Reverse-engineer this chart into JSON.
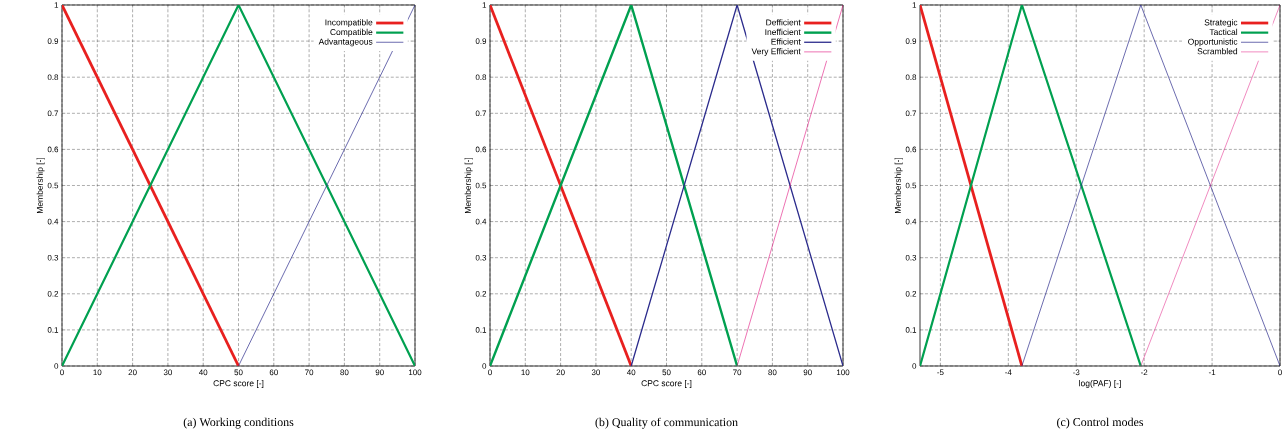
{
  "chart_data": [
    {
      "type": "line",
      "title": "(a)  Working conditions",
      "xlabel": "CPC score [-]",
      "ylabel": "Membership [-]",
      "xlim": [
        0,
        100
      ],
      "ylim": [
        0,
        1
      ],
      "xticks": [
        0,
        10,
        20,
        30,
        40,
        50,
        60,
        70,
        80,
        90,
        100
      ],
      "yticks": [
        0,
        0.1,
        0.2,
        0.3,
        0.4,
        0.5,
        0.6,
        0.7,
        0.8,
        0.9,
        1
      ],
      "grid": true,
      "legend": "top right",
      "series": [
        {
          "name": "Incompatible",
          "color": "#e8201f",
          "x": [
            0,
            50
          ],
          "values": [
            1,
            0
          ]
        },
        {
          "name": "Compatible",
          "color": "#00a050",
          "x": [
            0,
            50,
            100
          ],
          "values": [
            0,
            1,
            0
          ]
        },
        {
          "name": "Advantageous",
          "color": "#2b2b8c",
          "x": [
            50,
            100
          ],
          "values": [
            0,
            1
          ]
        }
      ]
    },
    {
      "type": "line",
      "title": "(b)  Quality of communication",
      "xlabel": "CPC score [-]",
      "ylabel": "Membership [-]",
      "xlim": [
        0,
        100
      ],
      "ylim": [
        0,
        1
      ],
      "xticks": [
        0,
        10,
        20,
        30,
        40,
        50,
        60,
        70,
        80,
        90,
        100
      ],
      "yticks": [
        0,
        0.1,
        0.2,
        0.3,
        0.4,
        0.5,
        0.6,
        0.7,
        0.8,
        0.9,
        1
      ],
      "grid": true,
      "legend": "top right",
      "series": [
        {
          "name": "Defficient",
          "color": "#e8201f",
          "x": [
            0,
            40
          ],
          "values": [
            1,
            0
          ]
        },
        {
          "name": "Inefficient",
          "color": "#00a050",
          "x": [
            0,
            40,
            70
          ],
          "values": [
            0,
            1,
            0
          ]
        },
        {
          "name": "Efficient",
          "color": "#2b2b8c",
          "x": [
            40,
            70,
            100
          ],
          "values": [
            0,
            1,
            0
          ]
        },
        {
          "name": "Very Efficient",
          "color": "#e0147f",
          "x": [
            70,
            100
          ],
          "values": [
            0,
            1
          ]
        }
      ]
    },
    {
      "type": "line",
      "title": "(c)  Control modes",
      "xlabel": "log(PAF) [-]",
      "ylabel": "Membership [-]",
      "xlim": [
        -5.3,
        0
      ],
      "ylim": [
        0,
        1
      ],
      "xticks": [
        -5,
        -4,
        -3,
        -2,
        -1,
        0
      ],
      "yticks": [
        0,
        0.1,
        0.2,
        0.3,
        0.4,
        0.5,
        0.6,
        0.7,
        0.8,
        0.9,
        1
      ],
      "grid": true,
      "legend": "top right",
      "series": [
        {
          "name": "Strategic",
          "color": "#e8201f",
          "x": [
            -5.3,
            -3.8
          ],
          "values": [
            1,
            0
          ]
        },
        {
          "name": "Tactical",
          "color": "#00a050",
          "x": [
            -5.3,
            -3.8,
            -2.05
          ],
          "values": [
            0,
            1,
            0
          ]
        },
        {
          "name": "Opportunistic",
          "color": "#2b2b8c",
          "x": [
            -3.8,
            -2.05,
            0
          ],
          "values": [
            0,
            1,
            0
          ]
        },
        {
          "name": "Scrambled",
          "color": "#e0147f",
          "x": [
            -2.05,
            0
          ],
          "values": [
            0,
            1
          ]
        }
      ]
    }
  ]
}
